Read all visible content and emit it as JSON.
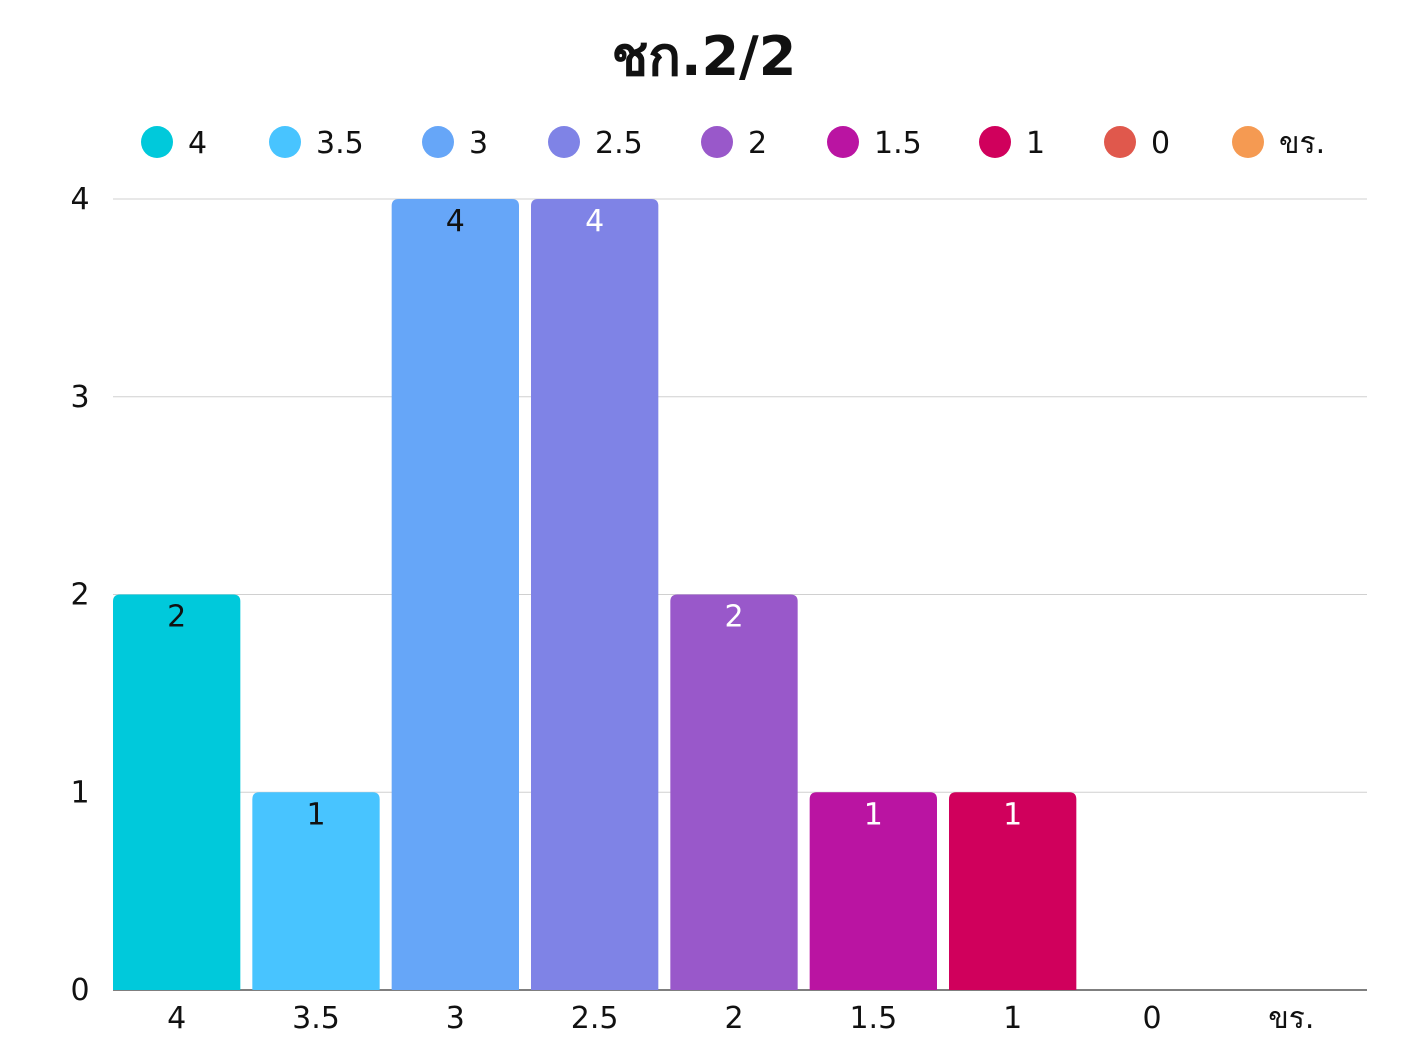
{
  "chart_data": {
    "type": "bar",
    "title": "ชก.2/2",
    "xlabel": "",
    "ylabel": "",
    "categories": [
      "4",
      "3.5",
      "3",
      "2.5",
      "2",
      "1.5",
      "1",
      "0",
      "ขร."
    ],
    "values": [
      2,
      1,
      4,
      4,
      2,
      1,
      1,
      0,
      0
    ],
    "colors": [
      "#00C9DB",
      "#48C4FF",
      "#66A6F8",
      "#7F83E6",
      "#9958CA",
      "#BA14A2",
      "#D0005C",
      "#E0584C",
      "#F59A52"
    ],
    "label_colors": [
      "#111111",
      "#111111",
      "#111111",
      "#ffffff",
      "#ffffff",
      "#ffffff",
      "#ffffff",
      "#ffffff",
      "#ffffff"
    ],
    "legend": [
      "4",
      "3.5",
      "3",
      "2.5",
      "2",
      "1.5",
      "1",
      "0",
      "ขร."
    ],
    "legend_position": "top",
    "ylim": [
      0,
      4
    ],
    "yticks": [
      0,
      1,
      2,
      3,
      4
    ],
    "grid": true
  }
}
